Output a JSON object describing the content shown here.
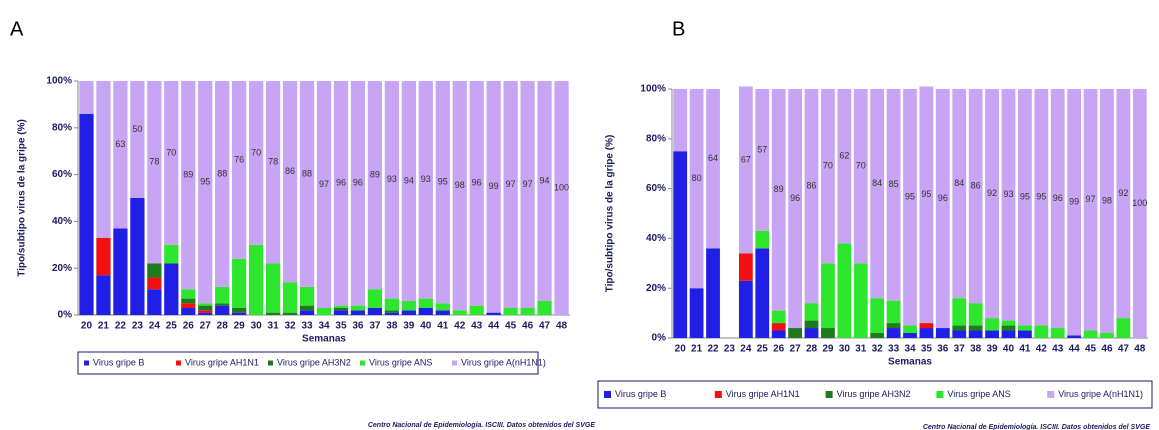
{
  "chart_data": [
    {
      "type": "bar",
      "panel": "A",
      "stacked": true,
      "y_label": "Tipo/subtipo virus de la gripe (%)",
      "x_label": "Semanas",
      "footer": "Centro Nacional de Epidemiología. ISCIII. Datos obtenidos del SVGE",
      "categories": [
        "20",
        "21",
        "22",
        "23",
        "24",
        "25",
        "26",
        "27",
        "28",
        "29",
        "30",
        "31",
        "32",
        "33",
        "34",
        "35",
        "36",
        "37",
        "38",
        "39",
        "40",
        "41",
        "42",
        "43",
        "44",
        "45",
        "46",
        "47",
        "48"
      ],
      "ylim": [
        0,
        100
      ],
      "yticks": [
        {
          "value": 0,
          "label": "0%"
        },
        {
          "value": 20,
          "label": "20%"
        },
        {
          "value": 40,
          "label": "40%"
        },
        {
          "value": 60,
          "label": "60%"
        },
        {
          "value": 80,
          "label": "80%"
        },
        {
          "value": 100,
          "label": "100%"
        }
      ],
      "series": [
        {
          "name": "Virus gripe B",
          "color": "#1f1fe6",
          "values": [
            86,
            17,
            37,
            50,
            11,
            22,
            3,
            1,
            4,
            1,
            0,
            0,
            0,
            2,
            0,
            2,
            2,
            3,
            1,
            2,
            3,
            2,
            0,
            0,
            1,
            0,
            0,
            0,
            0
          ]
        },
        {
          "name": "Virus gripe AH1N1",
          "color": "#f01010",
          "values": [
            0,
            16,
            0,
            0,
            5,
            0,
            2,
            1,
            0,
            0,
            0,
            0,
            0,
            0,
            0,
            0,
            0,
            0,
            0,
            0,
            0,
            0,
            0,
            0,
            0,
            0,
            0,
            0,
            0
          ]
        },
        {
          "name": "Virus gripe AH3N2",
          "color": "#1d7a1d",
          "values": [
            0,
            0,
            0,
            0,
            6,
            0,
            2,
            2,
            1,
            2,
            0,
            1,
            1,
            2,
            0,
            1,
            0,
            0,
            1,
            0,
            0,
            0,
            0,
            0,
            0,
            0,
            0,
            0,
            0
          ]
        },
        {
          "name": "Virus gripe ANS",
          "color": "#2ee62e",
          "values": [
            0,
            0,
            0,
            0,
            0,
            8,
            4,
            1,
            7,
            21,
            30,
            21,
            13,
            8,
            3,
            1,
            2,
            8,
            5,
            4,
            4,
            3,
            2,
            4,
            0,
            3,
            3,
            6,
            0
          ]
        },
        {
          "name": "Virus gripe A(nH1N1)",
          "color": "#c8a4f4",
          "values": [
            14,
            67,
            63,
            50,
            78,
            70,
            89,
            95,
            88,
            76,
            70,
            78,
            86,
            88,
            97,
            96,
            96,
            89,
            93,
            94,
            93,
            95,
            98,
            96,
            99,
            97,
            97,
            94,
            100
          ],
          "value_labels": [
            null,
            null,
            63,
            50,
            78,
            70,
            89,
            95,
            88,
            76,
            70,
            78,
            86,
            88,
            97,
            96,
            96,
            89,
            93,
            94,
            93,
            95,
            98,
            96,
            99,
            97,
            97,
            94,
            100
          ]
        }
      ]
    },
    {
      "type": "bar",
      "panel": "B",
      "stacked": true,
      "y_label": "Tipo/subtipo virus de la gripe (%)",
      "x_label": "Semanas",
      "footer": "Centro Nacional de Epidemiología. ISCIII. Datos obtenidos del SVGE",
      "categories": [
        "20",
        "21",
        "22",
        "23",
        "24",
        "25",
        "26",
        "27",
        "28",
        "29",
        "30",
        "31",
        "32",
        "33",
        "34",
        "35",
        "36",
        "37",
        "38",
        "39",
        "40",
        "41",
        "42",
        "43",
        "44",
        "45",
        "46",
        "47",
        "48"
      ],
      "ylim": [
        0,
        100
      ],
      "yticks": [
        {
          "value": 0,
          "label": "0%"
        },
        {
          "value": 20,
          "label": "20%"
        },
        {
          "value": 40,
          "label": "40%"
        },
        {
          "value": 60,
          "label": "60%"
        },
        {
          "value": 80,
          "label": "80%"
        },
        {
          "value": 100,
          "label": "100%"
        }
      ],
      "series": [
        {
          "name": "Virus gripe B",
          "color": "#1f1fe6",
          "values": [
            75,
            20,
            36,
            0,
            23,
            36,
            3,
            0,
            4,
            0,
            0,
            0,
            0,
            4,
            2,
            4,
            4,
            3,
            3,
            3,
            3,
            3,
            0,
            0,
            1,
            0,
            0,
            0,
            0
          ]
        },
        {
          "name": "Virus gripe AH1N1",
          "color": "#f01010",
          "values": [
            0,
            0,
            0,
            0,
            11,
            0,
            3,
            0,
            0,
            0,
            0,
            0,
            0,
            0,
            0,
            2,
            0,
            0,
            0,
            0,
            0,
            0,
            0,
            0,
            0,
            0,
            0,
            0,
            0
          ]
        },
        {
          "name": "Virus gripe AH3N2",
          "color": "#1d7a1d",
          "values": [
            0,
            0,
            0,
            0,
            0,
            0,
            0,
            4,
            3,
            4,
            0,
            0,
            2,
            2,
            0,
            0,
            0,
            2,
            2,
            0,
            2,
            0,
            0,
            0,
            0,
            0,
            0,
            0,
            0
          ]
        },
        {
          "name": "Virus gripe ANS",
          "color": "#2ee62e",
          "values": [
            0,
            0,
            0,
            0,
            0,
            7,
            5,
            0,
            7,
            26,
            38,
            30,
            14,
            9,
            3,
            0,
            0,
            11,
            9,
            5,
            2,
            2,
            5,
            4,
            0,
            3,
            2,
            8,
            0
          ]
        },
        {
          "name": "Virus gripe A(nH1N1)",
          "color": "#c8a4f4",
          "values": [
            25,
            80,
            64,
            0,
            67,
            57,
            89,
            96,
            86,
            70,
            62,
            70,
            84,
            85,
            95,
            95,
            96,
            84,
            86,
            92,
            93,
            95,
            95,
            96,
            99,
            97,
            98,
            92,
            100
          ],
          "value_labels": [
            null,
            80,
            64,
            null,
            67,
            57,
            89,
            96,
            86,
            70,
            62,
            70,
            84,
            85,
            95,
            95,
            96,
            84,
            86,
            92,
            93,
            95,
            95,
            96,
            99,
            97,
            98,
            92,
            100
          ]
        }
      ]
    }
  ]
}
